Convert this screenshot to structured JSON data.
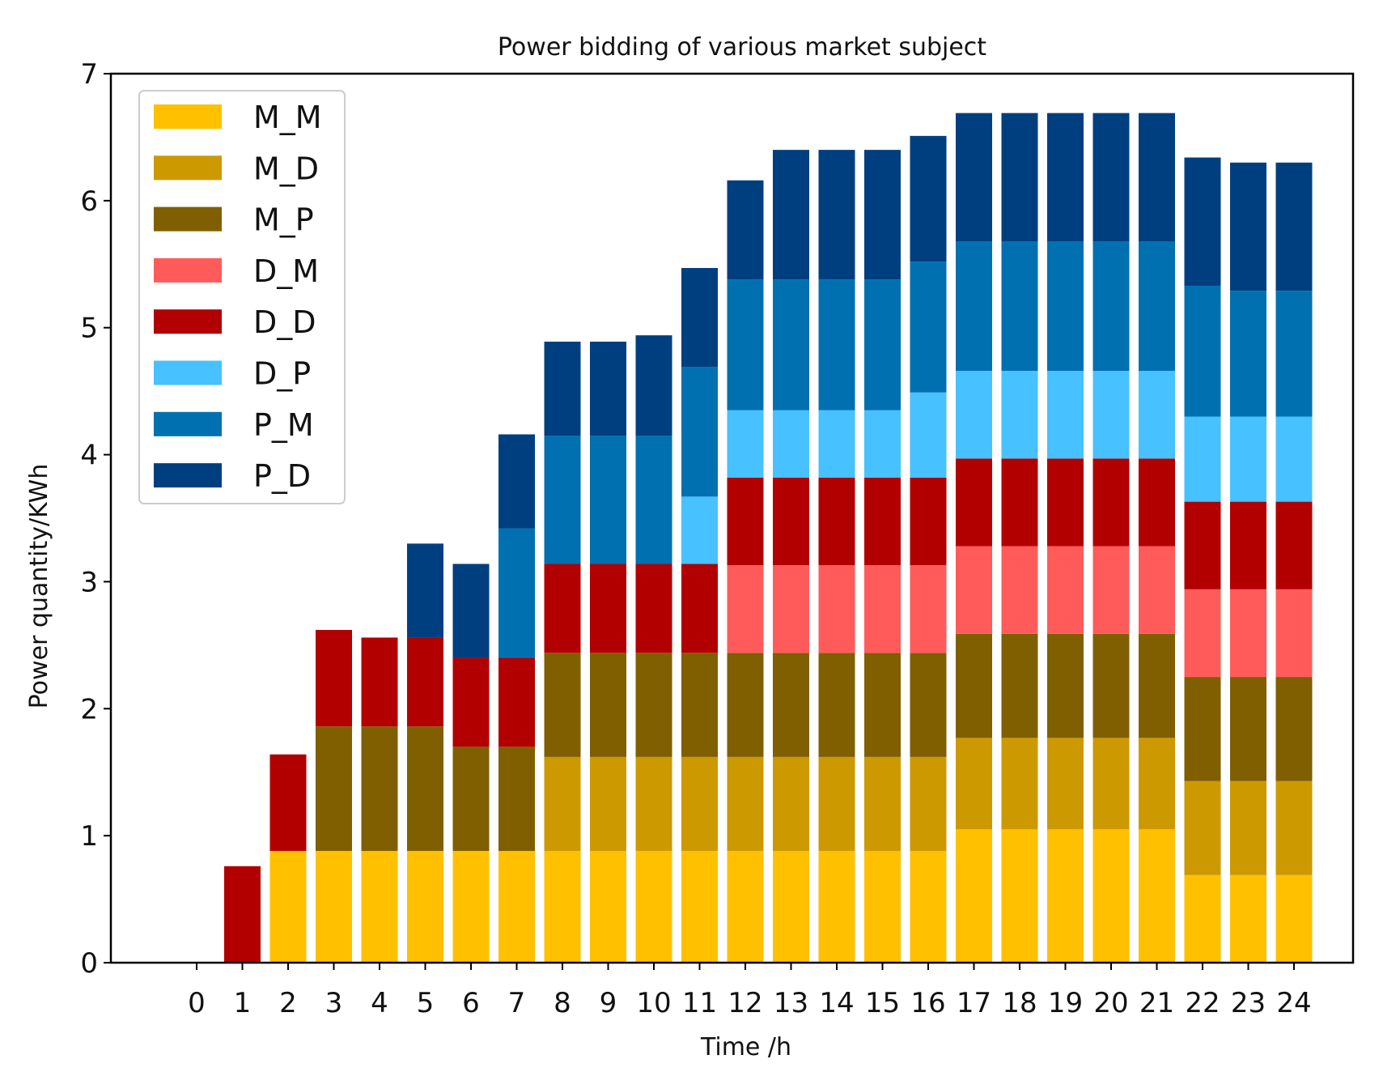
{
  "chart_data": {
    "type": "bar",
    "stacked": true,
    "title": "Power bidding of various market subject",
    "xlabel": "Time  /h",
    "ylabel": "Power quantity/KWh",
    "ylim": [
      0,
      7
    ],
    "yticks": [
      "0",
      "1",
      "2",
      "3",
      "4",
      "5",
      "6",
      "7"
    ],
    "categories": [
      "0",
      "1",
      "2",
      "3",
      "4",
      "5",
      "6",
      "7",
      "8",
      "9",
      "10",
      "11",
      "12",
      "13",
      "14",
      "15",
      "16",
      "17",
      "18",
      "19",
      "20",
      "21",
      "22",
      "23",
      "24"
    ],
    "legend_position": "top-left",
    "series": [
      {
        "name": "M_M",
        "color": "#FFC000",
        "values": [
          0,
          0,
          0.88,
          0.88,
          0.88,
          0.88,
          0.88,
          0.88,
          0.88,
          0.88,
          0.88,
          0.88,
          0.88,
          0.88,
          0.88,
          0.88,
          0.88,
          1.05,
          1.05,
          1.05,
          1.05,
          1.05,
          0.69,
          0.69,
          0.69
        ]
      },
      {
        "name": "M_D",
        "color": "#CC9900",
        "values": [
          0,
          0,
          0,
          0,
          0,
          0,
          0,
          0,
          0.74,
          0.74,
          0.74,
          0.74,
          0.74,
          0.74,
          0.74,
          0.74,
          0.74,
          0.72,
          0.72,
          0.72,
          0.72,
          0.72,
          0.74,
          0.74,
          0.74
        ]
      },
      {
        "name": "M_P",
        "color": "#7F5F00",
        "values": [
          0,
          0,
          0,
          0.98,
          0.98,
          0.98,
          0.82,
          0.82,
          0.82,
          0.82,
          0.82,
          0.82,
          0.82,
          0.82,
          0.82,
          0.82,
          0.82,
          0.82,
          0.82,
          0.82,
          0.82,
          0.82,
          0.82,
          0.82,
          0.82
        ]
      },
      {
        "name": "D_M",
        "color": "#FF5B5B",
        "values": [
          0,
          0,
          0,
          0,
          0,
          0,
          0,
          0,
          0,
          0,
          0,
          0,
          0.69,
          0.69,
          0.69,
          0.69,
          0.69,
          0.69,
          0.69,
          0.69,
          0.69,
          0.69,
          0.69,
          0.69,
          0.69
        ]
      },
      {
        "name": "D_D",
        "color": "#B20000",
        "values": [
          0,
          0.76,
          0.76,
          0.76,
          0.7,
          0.7,
          0.7,
          0.7,
          0.7,
          0.7,
          0.7,
          0.7,
          0.69,
          0.69,
          0.69,
          0.69,
          0.69,
          0.69,
          0.69,
          0.69,
          0.69,
          0.69,
          0.69,
          0.69,
          0.69
        ]
      },
      {
        "name": "D_P",
        "color": "#47C1FF",
        "values": [
          0,
          0,
          0,
          0,
          0,
          0,
          0,
          0,
          0,
          0,
          0,
          0.53,
          0.53,
          0.53,
          0.53,
          0.53,
          0.67,
          0.69,
          0.69,
          0.69,
          0.69,
          0.69,
          0.67,
          0.67,
          0.67
        ]
      },
      {
        "name": "P_M",
        "color": "#0070B0",
        "values": [
          0,
          0,
          0,
          0,
          0,
          0,
          0,
          1.02,
          1.01,
          1.01,
          1.01,
          1.02,
          1.03,
          1.03,
          1.03,
          1.03,
          1.03,
          1.02,
          1.02,
          1.02,
          1.02,
          1.02,
          1.03,
          0.99,
          0.99
        ]
      },
      {
        "name": "P_D",
        "color": "#003F7F",
        "values": [
          0,
          0,
          0,
          0,
          0,
          0.74,
          0.74,
          0.74,
          0.74,
          0.74,
          0.79,
          0.78,
          0.78,
          1.02,
          1.02,
          1.02,
          0.99,
          1.01,
          1.01,
          1.01,
          1.01,
          1.01,
          1.01,
          1.01,
          1.01
        ]
      }
    ]
  }
}
